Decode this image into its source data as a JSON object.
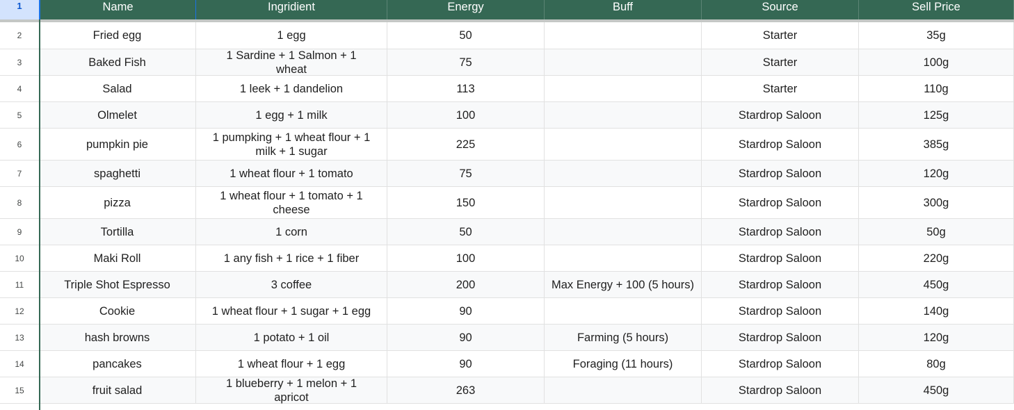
{
  "header": {
    "row_number": "1",
    "columns": [
      "Name",
      "Ingridient",
      "Energy",
      "Buff",
      "Source",
      "Sell Price"
    ]
  },
  "rows": [
    {
      "num": "2",
      "cells": [
        "Fried egg",
        "1 egg",
        "50",
        "",
        "Starter",
        "35g"
      ]
    },
    {
      "num": "3",
      "cells": [
        "Baked Fish",
        "1 Sardine + 1 Salmon + 1 wheat",
        "75",
        "",
        "Starter",
        "100g"
      ]
    },
    {
      "num": "4",
      "cells": [
        "Salad",
        "1 leek + 1 dandelion",
        "113",
        "",
        "Starter",
        "110g"
      ]
    },
    {
      "num": "5",
      "cells": [
        "Olmelet",
        "1 egg + 1 milk",
        "100",
        "",
        "Stardrop Saloon",
        "125g"
      ]
    },
    {
      "num": "6",
      "cells": [
        "pumpkin pie",
        "1 pumpking + 1 wheat flour + 1 milk + 1 sugar",
        "225",
        "",
        "Stardrop Saloon",
        "385g"
      ]
    },
    {
      "num": "7",
      "cells": [
        "spaghetti",
        "1 wheat flour + 1 tomato",
        "75",
        "",
        "Stardrop Saloon",
        "120g"
      ]
    },
    {
      "num": "8",
      "cells": [
        "pizza",
        "1 wheat flour + 1 tomato + 1 cheese",
        "150",
        "",
        "Stardrop Saloon",
        "300g"
      ]
    },
    {
      "num": "9",
      "cells": [
        "Tortilla",
        "1 corn",
        "50",
        "",
        "Stardrop Saloon",
        "50g"
      ]
    },
    {
      "num": "10",
      "cells": [
        "Maki Roll",
        "1 any fish + 1 rice + 1 fiber",
        "100",
        "",
        "Stardrop Saloon",
        "220g"
      ]
    },
    {
      "num": "11",
      "cells": [
        "Triple Shot Espresso",
        "3 coffee",
        "200",
        "Max Energy + 100 (5 hours)",
        "Stardrop Saloon",
        "450g"
      ]
    },
    {
      "num": "12",
      "cells": [
        "Cookie",
        "1 wheat flour + 1 sugar + 1 egg",
        "90",
        "",
        "Stardrop Saloon",
        "140g"
      ]
    },
    {
      "num": "13",
      "cells": [
        "hash browns",
        "1 potato + 1 oil",
        "90",
        "Farming (5 hours)",
        "Stardrop Saloon",
        "120g"
      ]
    },
    {
      "num": "14",
      "cells": [
        "pancakes",
        "1 wheat flour + 1 egg",
        "90",
        "Foraging (11 hours)",
        "Stardrop Saloon",
        "80g"
      ]
    },
    {
      "num": "15",
      "cells": [
        "fruit salad",
        "1 blueberry + 1 melon + 1 apricot",
        "263",
        "",
        "Stardrop Saloon",
        "450g"
      ]
    }
  ],
  "colors": {
    "header_bg": "#356854",
    "header_text": "#ffffff",
    "band": "#f8f9fa",
    "selected_row_header": "#d3e3fd"
  }
}
